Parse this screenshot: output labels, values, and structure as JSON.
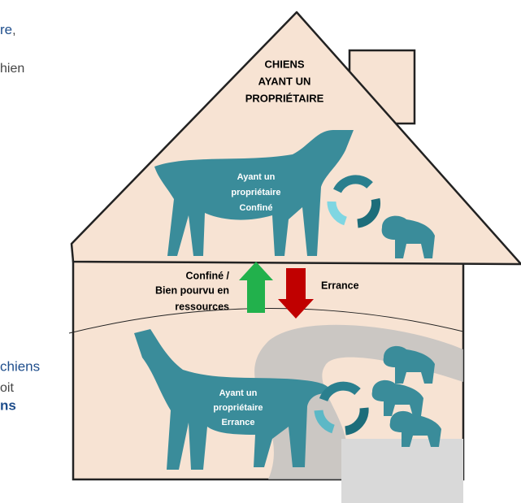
{
  "left_text": {
    "line1_blue": "re",
    "line1_rest": ",",
    "line2": "hien",
    "line3": "chiens",
    "line4": "oit",
    "line5": "ns"
  },
  "house": {
    "title": [
      "CHIENS",
      "AYANT UN",
      "PROPRIÉTAIRE"
    ]
  },
  "upper_dog": {
    "label": [
      "Ayant un",
      "propriétaire",
      "Confiné"
    ]
  },
  "arrows": {
    "up_label": [
      "Confiné /",
      "Bien pourvu en",
      "ressources"
    ],
    "down_label": "Errance"
  },
  "lower_dog": {
    "label": [
      "Ayant un",
      "propriétaire",
      "Errance"
    ]
  }
}
